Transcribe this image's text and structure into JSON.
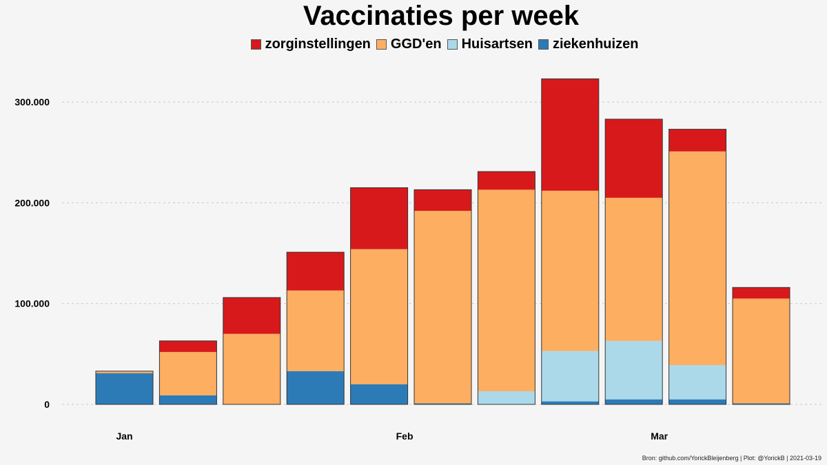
{
  "chart_data": {
    "type": "bar",
    "stacked": true,
    "title": "Vaccinaties per week",
    "xlabel": "",
    "ylabel": "",
    "legend_position": "top",
    "grid": "horizontal-dashed",
    "ylim": [
      0,
      330000
    ],
    "y_ticks": [
      {
        "value": 0,
        "label": "0"
      },
      {
        "value": 100000,
        "label": "100.000"
      },
      {
        "value": 200000,
        "label": "200.000"
      },
      {
        "value": 300000,
        "label": "300.000"
      }
    ],
    "x_tick_labels": [
      {
        "bar_index": 0,
        "label": "Jan"
      },
      {
        "bar_index": 4.4,
        "label": "Feb"
      },
      {
        "bar_index": 8.4,
        "label": "Mar"
      }
    ],
    "series": [
      {
        "name": "ziekenhuizen",
        "color": "#2c7bb6",
        "values": [
          31000,
          9000,
          0,
          33000,
          20000,
          1000,
          0,
          3000,
          5000,
          5000,
          1000
        ]
      },
      {
        "name": "Huisartsen",
        "color": "#abd9e9",
        "values": [
          0,
          0,
          0,
          0,
          0,
          0,
          13000,
          50000,
          58000,
          34000,
          0
        ]
      },
      {
        "name": "GGD'en",
        "color": "#fdae61",
        "values": [
          2000,
          43000,
          70000,
          80000,
          134000,
          191000,
          200000,
          159000,
          142000,
          212000,
          104000
        ]
      },
      {
        "name": "zorginstellingen",
        "color": "#d7191c",
        "values": [
          0,
          11000,
          36000,
          38000,
          61000,
          21000,
          18000,
          111000,
          78000,
          22000,
          11000
        ]
      }
    ]
  },
  "legend_order": [
    3,
    2,
    1,
    0
  ],
  "source_caption": "Bron: github.com/YorickBleijenberg | Plot: @YorickB  |  2021-03-19"
}
